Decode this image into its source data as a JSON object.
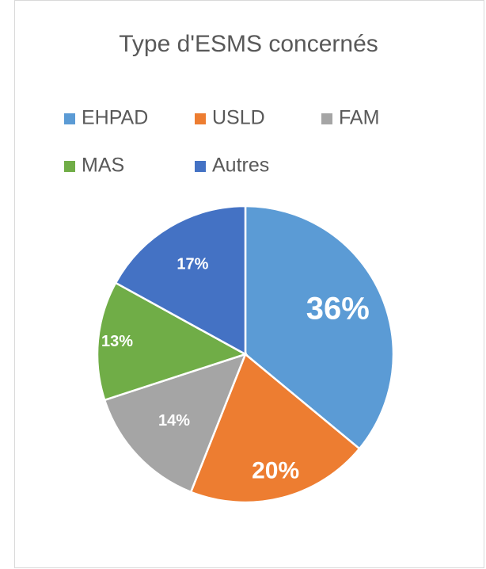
{
  "chart_data": {
    "type": "pie",
    "title": "Type d'ESMS concernés",
    "categories": [
      "EHPAD",
      "USLD",
      "FAM",
      "MAS",
      "Autres"
    ],
    "values": [
      36,
      20,
      14,
      13,
      17
    ],
    "value_labels": [
      "36%",
      "20%",
      "14%",
      "13%",
      "17%"
    ],
    "colors": [
      "#5b9bd5",
      "#ed7d31",
      "#a5a5a5",
      "#70ad47",
      "#4472c4"
    ]
  }
}
